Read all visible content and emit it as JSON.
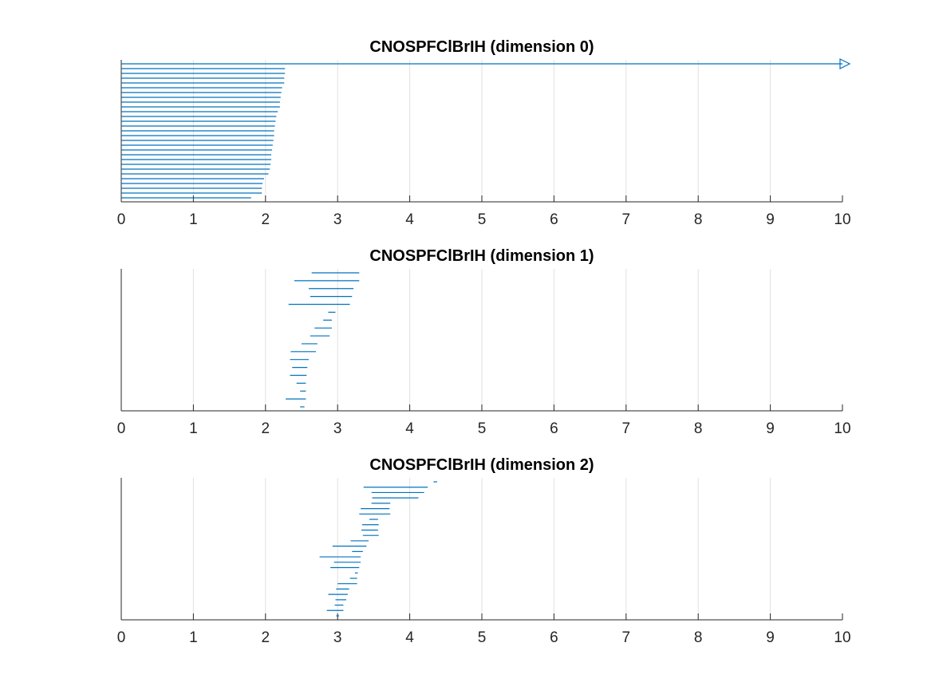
{
  "chart_data": [
    {
      "type": "barcode",
      "title": "CNOSPFClBrIH (dimension 0)",
      "xlim": [
        0,
        10
      ],
      "xticks": [
        "0",
        "1",
        "2",
        "3",
        "4",
        "5",
        "6",
        "7",
        "8",
        "9",
        "10"
      ],
      "grid": "vertical",
      "color": "#0072bd",
      "infinite_marker": "right-arrow",
      "bars": [
        {
          "birth": 0,
          "death": null
        },
        {
          "birth": 0,
          "death": 2.27
        },
        {
          "birth": 0,
          "death": 2.27
        },
        {
          "birth": 0,
          "death": 2.26
        },
        {
          "birth": 0,
          "death": 2.26
        },
        {
          "birth": 0,
          "death": 2.23
        },
        {
          "birth": 0,
          "death": 2.22
        },
        {
          "birth": 0,
          "death": 2.21
        },
        {
          "birth": 0,
          "death": 2.2
        },
        {
          "birth": 0,
          "death": 2.2
        },
        {
          "birth": 0,
          "death": 2.17
        },
        {
          "birth": 0,
          "death": 2.15
        },
        {
          "birth": 0,
          "death": 2.14
        },
        {
          "birth": 0,
          "death": 2.13
        },
        {
          "birth": 0,
          "death": 2.12
        },
        {
          "birth": 0,
          "death": 2.12
        },
        {
          "birth": 0,
          "death": 2.11
        },
        {
          "birth": 0,
          "death": 2.1
        },
        {
          "birth": 0,
          "death": 2.09
        },
        {
          "birth": 0,
          "death": 2.08
        },
        {
          "birth": 0,
          "death": 2.08
        },
        {
          "birth": 0,
          "death": 2.07
        },
        {
          "birth": 0,
          "death": 2.06
        },
        {
          "birth": 0,
          "death": 2.04
        },
        {
          "birth": 0,
          "death": 1.98
        },
        {
          "birth": 0,
          "death": 1.96
        },
        {
          "birth": 0,
          "death": 1.95
        },
        {
          "birth": 0,
          "death": 1.95
        },
        {
          "birth": 0,
          "death": 1.8
        }
      ]
    },
    {
      "type": "barcode",
      "title": "CNOSPFClBrIH (dimension 1)",
      "xlim": [
        0,
        10
      ],
      "xticks": [
        "0",
        "1",
        "2",
        "3",
        "4",
        "5",
        "6",
        "7",
        "8",
        "9",
        "10"
      ],
      "grid": "vertical",
      "color": "#0072bd",
      "bars": [
        {
          "birth": 2.64,
          "death": 3.3
        },
        {
          "birth": 2.4,
          "death": 3.3
        },
        {
          "birth": 2.6,
          "death": 3.22
        },
        {
          "birth": 2.62,
          "death": 3.2
        },
        {
          "birth": 2.32,
          "death": 3.17
        },
        {
          "birth": 2.87,
          "death": 2.97
        },
        {
          "birth": 2.8,
          "death": 2.92
        },
        {
          "birth": 2.68,
          "death": 2.92
        },
        {
          "birth": 2.62,
          "death": 2.89
        },
        {
          "birth": 2.5,
          "death": 2.72
        },
        {
          "birth": 2.35,
          "death": 2.7
        },
        {
          "birth": 2.34,
          "death": 2.6
        },
        {
          "birth": 2.37,
          "death": 2.58
        },
        {
          "birth": 2.34,
          "death": 2.57
        },
        {
          "birth": 2.43,
          "death": 2.56
        },
        {
          "birth": 2.48,
          "death": 2.56
        },
        {
          "birth": 2.28,
          "death": 2.56
        },
        {
          "birth": 2.48,
          "death": 2.54
        }
      ]
    },
    {
      "type": "barcode",
      "title": "CNOSPFClBrIH (dimension 2)",
      "xlim": [
        0,
        10
      ],
      "xticks": [
        "0",
        "1",
        "2",
        "3",
        "4",
        "5",
        "6",
        "7",
        "8",
        "9",
        "10"
      ],
      "grid": "vertical",
      "color": "#0072bd",
      "bars": [
        {
          "birth": 4.33,
          "death": 4.38
        },
        {
          "birth": 3.36,
          "death": 4.25
        },
        {
          "birth": 3.47,
          "death": 4.2
        },
        {
          "birth": 3.48,
          "death": 4.12
        },
        {
          "birth": 3.47,
          "death": 3.73
        },
        {
          "birth": 3.32,
          "death": 3.72
        },
        {
          "birth": 3.3,
          "death": 3.73
        },
        {
          "birth": 3.44,
          "death": 3.56
        },
        {
          "birth": 3.34,
          "death": 3.57
        },
        {
          "birth": 3.33,
          "death": 3.56
        },
        {
          "birth": 3.35,
          "death": 3.57
        },
        {
          "birth": 3.18,
          "death": 3.43
        },
        {
          "birth": 2.93,
          "death": 3.4
        },
        {
          "birth": 3.2,
          "death": 3.35
        },
        {
          "birth": 2.75,
          "death": 3.32
        },
        {
          "birth": 2.95,
          "death": 3.32
        },
        {
          "birth": 2.9,
          "death": 3.3
        },
        {
          "birth": 3.24,
          "death": 3.28
        },
        {
          "birth": 3.17,
          "death": 3.27
        },
        {
          "birth": 3.0,
          "death": 3.27
        },
        {
          "birth": 2.98,
          "death": 3.16
        },
        {
          "birth": 2.87,
          "death": 3.14
        },
        {
          "birth": 2.97,
          "death": 3.12
        },
        {
          "birth": 2.96,
          "death": 3.08
        },
        {
          "birth": 2.85,
          "death": 3.08
        },
        {
          "birth": 2.98,
          "death": 3.02
        }
      ]
    }
  ]
}
